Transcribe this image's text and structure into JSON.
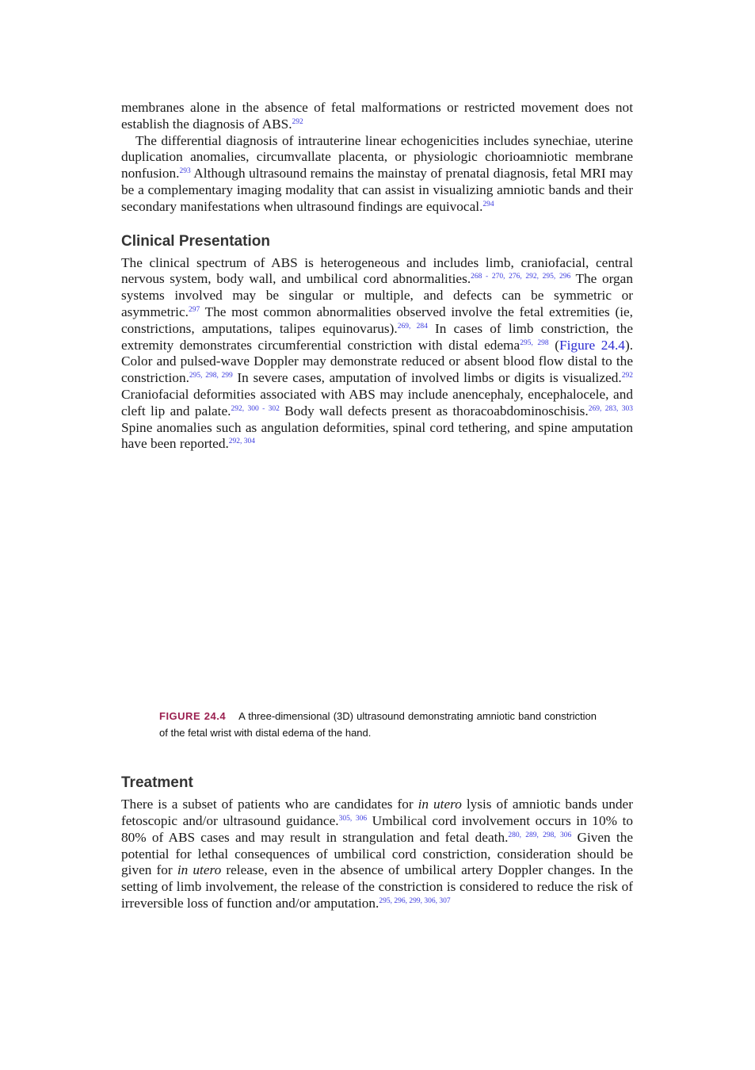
{
  "blocks": [
    {
      "kind": "paragraph",
      "segments": [
        {
          "t": "membranes alone in the absence of fetal malformations or restricted movement does not establish the diagnosis of ABS."
        },
        {
          "sup": "292"
        }
      ]
    },
    {
      "kind": "paragraph",
      "indent": true,
      "segments": [
        {
          "t": "The differential diagnosis of intrauterine linear echogenicities includes synechiae, uterine duplication anomalies, circumvallate placenta, or physiologic chorioamniotic membrane nonfusion."
        },
        {
          "sup": "293"
        },
        {
          "t": " Although ultrasound remains the mainstay of prenatal diagnosis, fetal MRI may be a complementary imaging modality that can assist in visualizing amniotic bands and their secondary manifestations when ultrasound findings are equivocal."
        },
        {
          "sup": "294"
        }
      ]
    },
    {
      "kind": "heading",
      "text": "Clinical Presentation"
    },
    {
      "kind": "paragraph",
      "segments": [
        {
          "t": "The clinical spectrum of ABS is heterogeneous and includes limb, craniofacial, central nervous system, body wall, and umbilical cord abnormalities."
        },
        {
          "sup": "268 - 270, 276, 292, 295, 296"
        },
        {
          "t": " The organ systems involved may be singular or multiple, and defects can be symmetric or asymmetric."
        },
        {
          "sup": "297"
        },
        {
          "t": " The most common abnormalities observed involve the fetal extremities (ie, constrictions, amputations, talipes equinovarus)."
        },
        {
          "sup": "269, 284"
        },
        {
          "t": " In cases of limb constriction, the extremity demonstrates circumferential constriction with distal edema"
        },
        {
          "sup": "295, 298"
        },
        {
          "t": " ("
        },
        {
          "link": "Figure 24.4"
        },
        {
          "t": "). Color and pulsed-wave Doppler may demonstrate reduced or absent blood flow distal to the constriction."
        },
        {
          "sup": "295, 298, 299"
        },
        {
          "t": " In severe cases, amputation of involved limbs or digits is visualized."
        },
        {
          "sup": "292"
        },
        {
          "t": " Craniofacial deformities associated with ABS may include anencephaly, encephalocele, and cleft lip and palate."
        },
        {
          "sup": "292, 300 - 302"
        },
        {
          "t": " Body wall defects present as thoracoabdominoschisis."
        },
        {
          "sup": "269, 283, 303"
        },
        {
          "t": " Spine anomalies such as angulation deformities, spinal cord tethering, and spine amputation have been reported."
        },
        {
          "sup": "292, 304"
        }
      ]
    },
    {
      "kind": "figure",
      "label": "FIGURE 24.4",
      "caption": "A three-dimensional (3D) ultrasound demonstrating amniotic band constriction of the fetal wrist with distal edema of the hand."
    },
    {
      "kind": "heading",
      "text": "Treatment"
    },
    {
      "kind": "paragraph",
      "segments": [
        {
          "t": "There is a subset of patients who are candidates for "
        },
        {
          "i": "in utero"
        },
        {
          "t": " lysis of amniotic bands under fetoscopic and/or ultrasound guidance."
        },
        {
          "sup": "305, 306"
        },
        {
          "t": " Umbilical cord involvement occurs in 10% to 80% of ABS cases and may result in strangulation and fetal death."
        },
        {
          "sup": "280, 289, 298, 306"
        },
        {
          "t": " Given the potential for lethal consequences of umbilical cord constriction, consideration should be given for "
        },
        {
          "i": "in utero"
        },
        {
          "t": " release, even in the absence of umbilical artery Doppler changes. In the setting of limb involvement, the release of the constriction is considered to reduce the risk of irreversible loss of function and/or amputation."
        },
        {
          "sup": "295, 296, 299, 306, 307"
        }
      ]
    }
  ]
}
